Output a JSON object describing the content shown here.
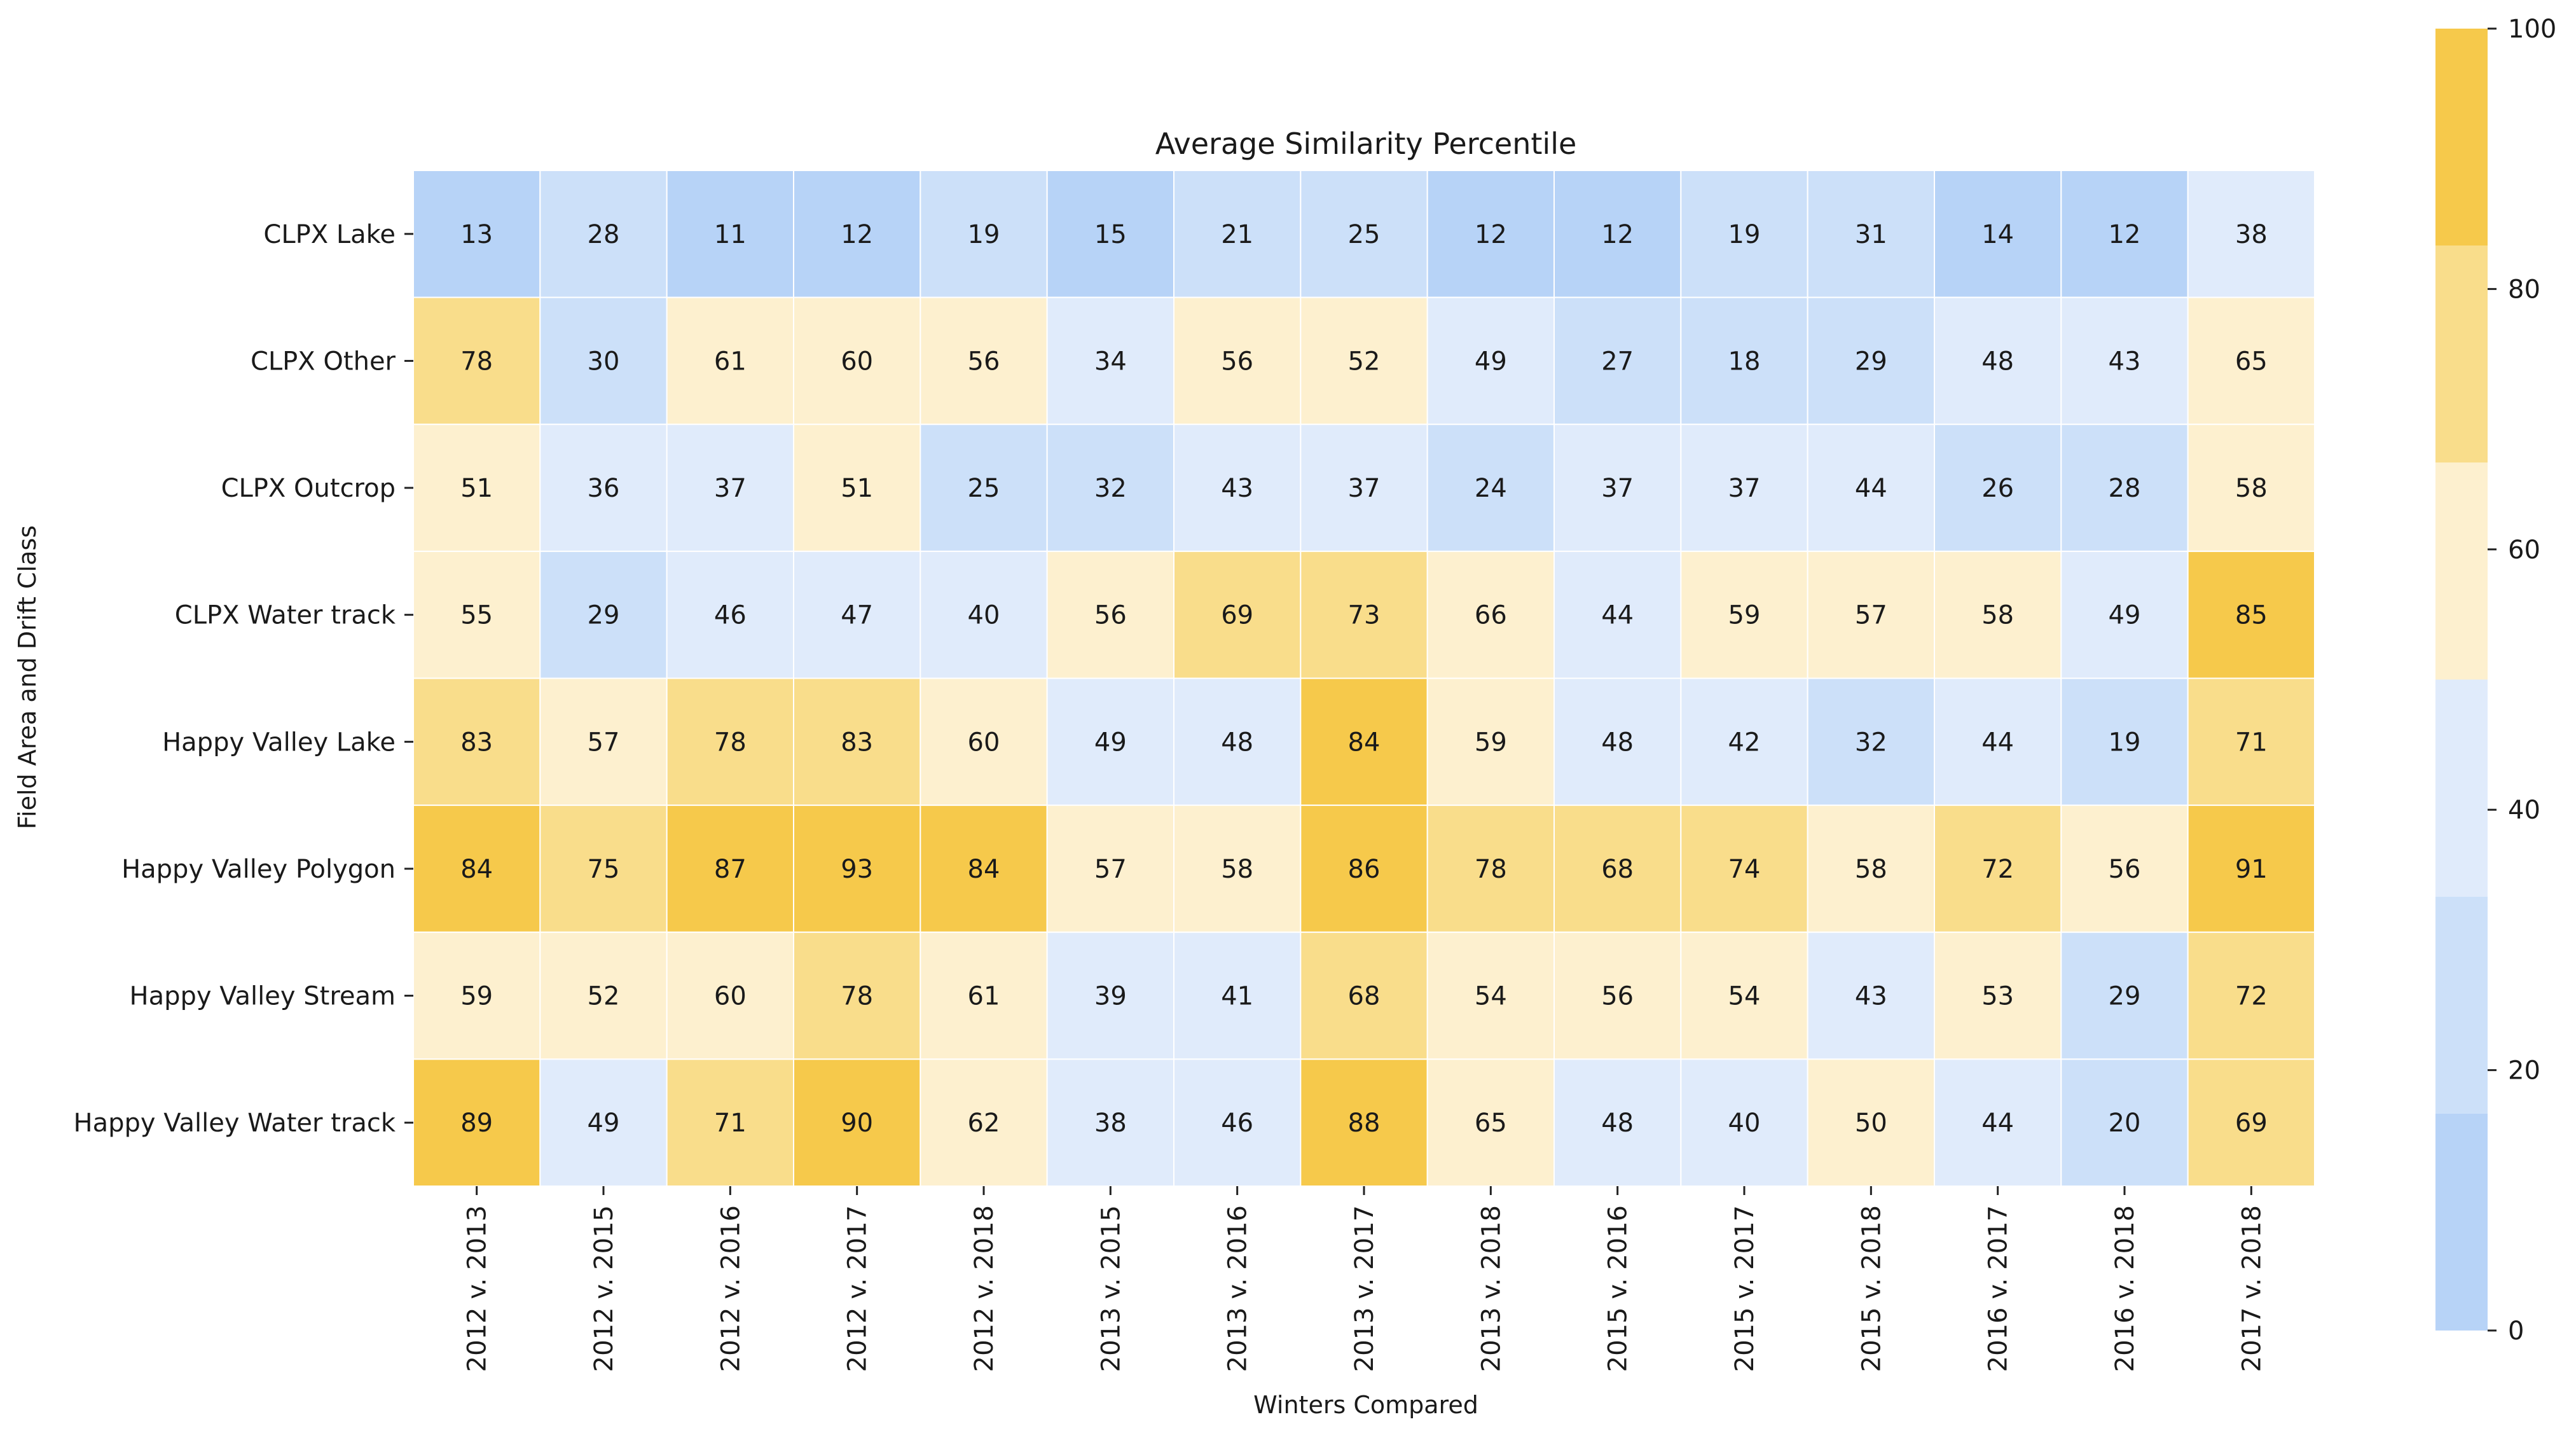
{
  "chart_data": {
    "type": "heatmap",
    "title": "Average Similarity Percentile",
    "xlabel": "Winters Compared",
    "ylabel": "Field Area and Drift Class",
    "x_categories": [
      "2012 v. 2013",
      "2012 v. 2015",
      "2012 v. 2016",
      "2012 v. 2017",
      "2012 v. 2018",
      "2013 v. 2015",
      "2013 v. 2016",
      "2013 v. 2017",
      "2013 v. 2018",
      "2015 v. 2016",
      "2015 v. 2017",
      "2015 v. 2018",
      "2016 v. 2017",
      "2016 v. 2018",
      "2017 v. 2018"
    ],
    "y_categories": [
      "CLPX Lake",
      "CLPX Other",
      "CLPX Outcrop",
      "CLPX Water track",
      "Happy Valley Lake",
      "Happy Valley Polygon",
      "Happy Valley Stream",
      "Happy Valley Water track"
    ],
    "values": [
      [
        13,
        28,
        11,
        12,
        19,
        15,
        21,
        25,
        12,
        12,
        19,
        31,
        14,
        12,
        38
      ],
      [
        78,
        30,
        61,
        60,
        56,
        34,
        56,
        52,
        49,
        27,
        18,
        29,
        48,
        43,
        65
      ],
      [
        51,
        36,
        37,
        51,
        25,
        32,
        43,
        37,
        24,
        37,
        37,
        44,
        26,
        28,
        58
      ],
      [
        55,
        29,
        46,
        47,
        40,
        56,
        69,
        73,
        66,
        44,
        59,
        57,
        58,
        49,
        85
      ],
      [
        83,
        57,
        78,
        83,
        60,
        49,
        48,
        84,
        59,
        48,
        42,
        32,
        44,
        19,
        71
      ],
      [
        84,
        75,
        87,
        93,
        84,
        57,
        58,
        86,
        78,
        68,
        74,
        58,
        72,
        56,
        91
      ],
      [
        59,
        52,
        60,
        78,
        61,
        39,
        41,
        68,
        54,
        56,
        54,
        43,
        53,
        29,
        72
      ],
      [
        89,
        49,
        71,
        90,
        62,
        38,
        46,
        88,
        65,
        48,
        40,
        50,
        44,
        20,
        69
      ]
    ],
    "colorbar": {
      "range": [
        0,
        100
      ],
      "ticks": [
        "0",
        "20",
        "40",
        "60",
        "80",
        "100"
      ],
      "bins": [
        {
          "from": 0,
          "to": 16.67,
          "color": "#b7d3f7"
        },
        {
          "from": 16.67,
          "to": 33.33,
          "color": "#cce0f9"
        },
        {
          "from": 33.33,
          "to": 50,
          "color": "#e0ebfb"
        },
        {
          "from": 50,
          "to": 66.67,
          "color": "#fdf0cf"
        },
        {
          "from": 66.67,
          "to": 83.33,
          "color": "#f9dd8b"
        },
        {
          "from": 83.33,
          "to": 100,
          "color": "#f6c94b"
        }
      ]
    },
    "grid": true,
    "cell_border_color": "#ffffff"
  }
}
